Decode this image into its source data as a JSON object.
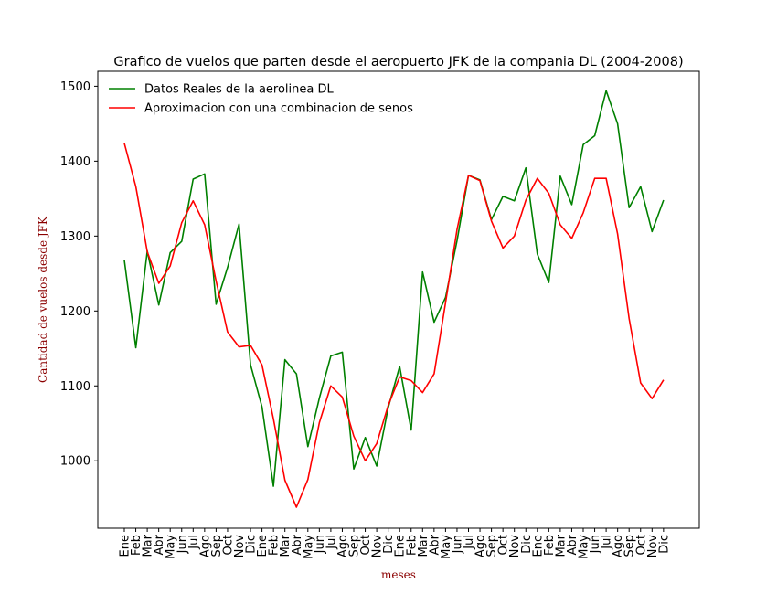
{
  "chart_data": {
    "type": "line",
    "title": "Grafico de vuelos que parten desde el aeropuerto JFK de la compania DL (2004-2008)",
    "xlabel": "meses",
    "ylabel": "Cantidad de vuelos desde JFK",
    "ylim": [
      910,
      1520
    ],
    "yticks": [
      1000,
      1100,
      1200,
      1300,
      1400,
      1500
    ],
    "grid": false,
    "legend_position": "top-left",
    "categories": [
      "Ene",
      "Feb",
      "Mar",
      "Abr",
      "May",
      "Jun",
      "Jul",
      "Ago",
      "Sep",
      "Oct",
      "Nov",
      "Dic",
      "Ene",
      "Feb",
      "Mar",
      "Abr",
      "May",
      "Jun",
      "Jul",
      "Ago",
      "Sep",
      "Oct",
      "Nov",
      "Dic",
      "Ene",
      "Feb",
      "Mar",
      "Abr",
      "May",
      "Jun",
      "Jul",
      "Ago",
      "Sep",
      "Oct",
      "Nov",
      "Dic",
      "Ene",
      "Feb",
      "Mar",
      "Abr",
      "May",
      "Jun",
      "Jul",
      "Ago",
      "Sep",
      "Oct",
      "Nov",
      "Dic"
    ],
    "series": [
      {
        "name": "Datos Reales de la aerolinea DL",
        "color": "#008000",
        "values": [
          1268,
          1151,
          1280,
          1208,
          1278,
          1293,
          1376,
          1383,
          1209,
          1258,
          1316,
          1128,
          1072,
          966,
          1135,
          1116,
          1019,
          1084,
          1140,
          1145,
          989,
          1031,
          993,
          1071,
          1126,
          1041,
          1252,
          1185,
          1218,
          1294,
          1381,
          1375,
          1322,
          1353,
          1347,
          1391,
          1276,
          1238,
          1380,
          1342,
          1422,
          1434,
          1494,
          1450,
          1338,
          1366,
          1306,
          1348
        ]
      },
      {
        "name": "Aproximacion con una combinacion de senos",
        "color": "#ff0000",
        "values": [
          1424,
          1366,
          1279,
          1237,
          1260,
          1318,
          1347,
          1315,
          1240,
          1172,
          1152,
          1154,
          1128,
          1056,
          974,
          938,
          975,
          1051,
          1100,
          1085,
          1033,
          1000,
          1023,
          1074,
          1112,
          1107,
          1091,
          1116,
          1211,
          1309,
          1381,
          1374,
          1320,
          1284,
          1300,
          1348,
          1377,
          1357,
          1315,
          1297,
          1331,
          1377,
          1377,
          1303,
          1190,
          1104,
          1083,
          1108
        ]
      }
    ]
  }
}
